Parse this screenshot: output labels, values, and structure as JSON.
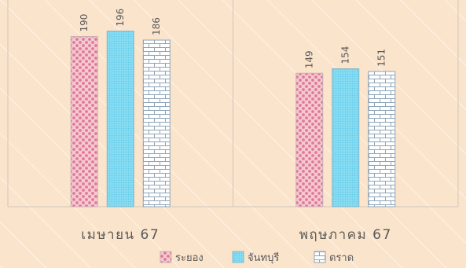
{
  "chart_data": {
    "type": "bar",
    "title": "",
    "xlabel": "",
    "ylabel": "",
    "categories": [
      "เมษายน 67",
      "พฤษภาคม 67"
    ],
    "series": [
      {
        "name": "ระยอง",
        "values": [
          190,
          149
        ],
        "pattern": "dots",
        "fill": "#f4c9d4",
        "dot": "#e07a93",
        "stroke": "#c9aeb4"
      },
      {
        "name": "จันทบุรี",
        "values": [
          196,
          154
        ],
        "pattern": "fine",
        "fill": "#86dcf2",
        "dot": "#5fc7e6",
        "stroke": "#7fb8c9"
      },
      {
        "name": "ตราด",
        "values": [
          186,
          151
        ],
        "pattern": "bricks",
        "fill": "#ffffff",
        "dot": "#8ea4b8",
        "stroke": "#8ea4b8"
      }
    ],
    "ylim": [
      0,
      215
    ],
    "grid": false,
    "data_labels": "rotated",
    "legend_position": "bottom",
    "background": "#fbe4cc",
    "stripe_color": "#ffffff",
    "axis_color": "#cfc6bc",
    "label_color": "#595959"
  }
}
